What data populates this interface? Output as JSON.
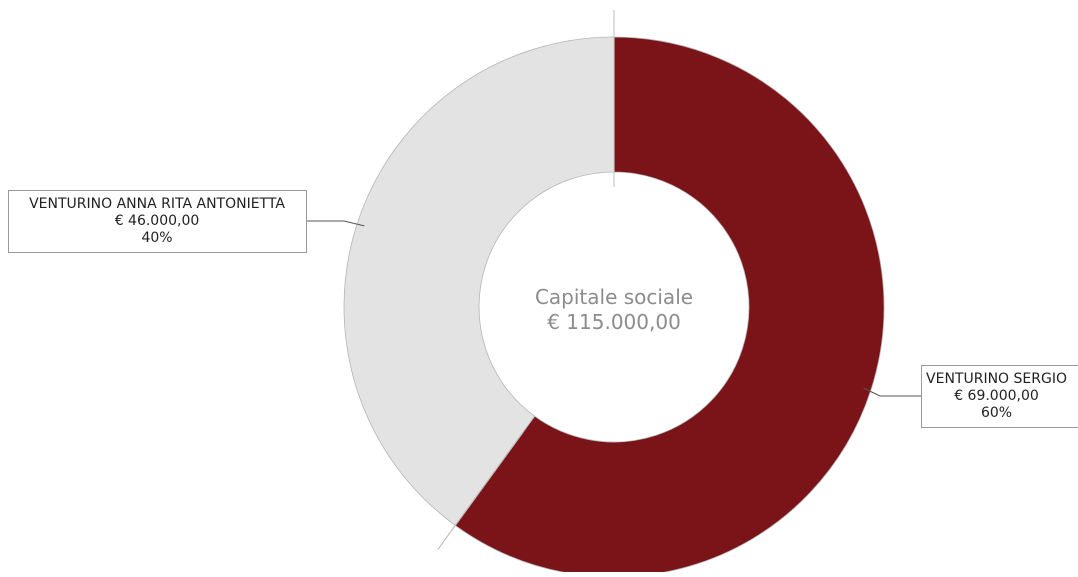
{
  "chart_data": {
    "type": "pie",
    "variant": "donut",
    "center_label": {
      "title": "Capitale sociale",
      "total": "€ 115.000,00"
    },
    "total_value": 115000,
    "slices": [
      {
        "name": "VENTURINO SERGIO",
        "value": 69000,
        "value_label": "€ 69.000,00",
        "percent_label": "60%",
        "percent": 60,
        "color": "#7a1418"
      },
      {
        "name": "VENTURINO ANNA RITA ANTONIETTA",
        "value": 46000,
        "value_label": "€ 46.000,00",
        "percent_label": "40%",
        "percent": 40,
        "color": "#e3e3e3"
      }
    ],
    "legend": "none",
    "labels": "callout-boxes"
  }
}
